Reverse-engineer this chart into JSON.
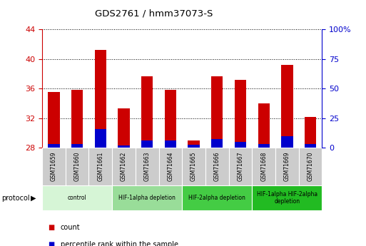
{
  "title": "GDS2761 / hmm37073-S",
  "samples": [
    "GSM71659",
    "GSM71660",
    "GSM71661",
    "GSM71662",
    "GSM71663",
    "GSM71664",
    "GSM71665",
    "GSM71666",
    "GSM71667",
    "GSM71668",
    "GSM71669",
    "GSM71670"
  ],
  "count_values": [
    35.5,
    35.8,
    41.2,
    33.3,
    37.7,
    35.8,
    29.0,
    37.7,
    37.2,
    34.0,
    39.2,
    32.2
  ],
  "percentile_values": [
    0.5,
    0.5,
    2.5,
    0.3,
    1.0,
    1.0,
    0.4,
    1.2,
    0.8,
    0.5,
    1.5,
    0.5
  ],
  "bar_base": 28,
  "ylim_left": [
    28,
    44
  ],
  "ylim_right": [
    0,
    100
  ],
  "yticks_left": [
    28,
    32,
    36,
    40,
    44
  ],
  "yticks_right": [
    0,
    25,
    50,
    75,
    100
  ],
  "ytick_labels_right": [
    "0",
    "25",
    "50",
    "75",
    "100%"
  ],
  "bar_color_red": "#cc0000",
  "bar_color_blue": "#0000cc",
  "protocol_groups": [
    {
      "label": "control",
      "start": 0,
      "end": 3,
      "color": "#d6f5d6"
    },
    {
      "label": "HIF-1alpha depletion",
      "start": 3,
      "end": 6,
      "color": "#99dd99"
    },
    {
      "label": "HIF-2alpha depletion",
      "start": 6,
      "end": 9,
      "color": "#44cc44"
    },
    {
      "label": "HIF-1alpha HIF-2alpha\ndepletion",
      "start": 9,
      "end": 12,
      "color": "#22bb22"
    }
  ],
  "protocol_label": "protocol",
  "legend_items": [
    {
      "label": "count",
      "color": "#cc0000"
    },
    {
      "label": "percentile rank within the sample",
      "color": "#0000cc"
    }
  ],
  "tick_color_left": "#cc0000",
  "tick_color_right": "#0000cc",
  "bar_width": 0.5,
  "fig_width": 5.13,
  "fig_height": 3.45,
  "dpi": 100
}
